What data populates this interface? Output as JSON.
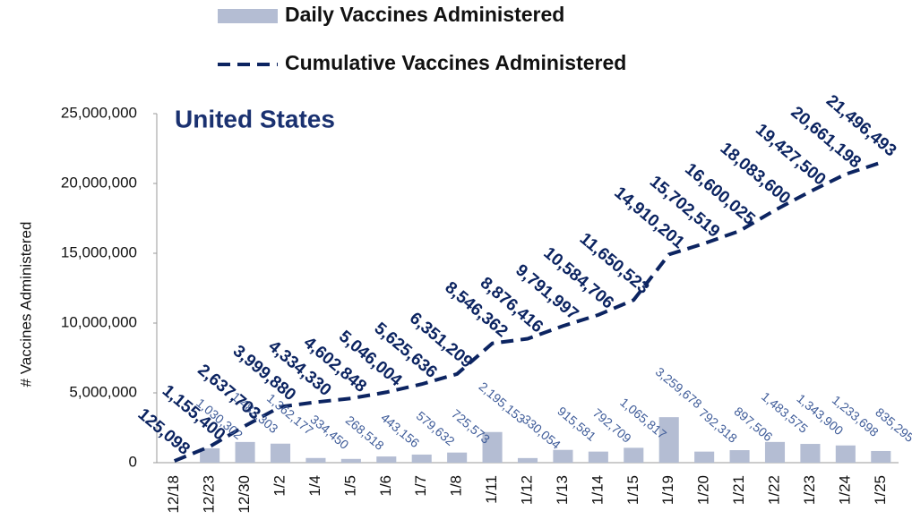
{
  "chart_data": {
    "type": "bar-line",
    "title": "United States",
    "y_label": "# Vaccines Administered",
    "categories": [
      "12/18",
      "12/23",
      "12/30",
      "1/2",
      "1/4",
      "1/5",
      "1/6",
      "1/7",
      "1/8",
      "1/11",
      "1/12",
      "1/13",
      "1/14",
      "1/15",
      "1/19",
      "1/20",
      "1/21",
      "1/22",
      "1/23",
      "1/24",
      "1/25"
    ],
    "series": [
      {
        "name": "Daily Vaccines Administered",
        "kind": "bar",
        "color": "#b4bdd3",
        "values": [
          null,
          1030302,
          1482303,
          1362177,
          334450,
          268518,
          443156,
          579632,
          725573,
          2195153,
          330054,
          915581,
          792709,
          1065817,
          3259678,
          792318,
          897506,
          1483575,
          1343900,
          1233698,
          835295
        ],
        "value_labels": [
          null,
          "1,030,302",
          "1,482,303",
          "1,362,177",
          "334,450",
          "268,518",
          "443,156",
          "579,632",
          "725,573",
          "2,195,153",
          "330,054",
          "915,581",
          "792,709",
          "1,065,817",
          "3,259,678",
          "792,318",
          "897,506",
          "1,483,575",
          "1,343,900",
          "1,233,698",
          "835,295"
        ]
      },
      {
        "name": "Cumulative Vaccines Administered",
        "kind": "line",
        "color": "#0c2461",
        "values": [
          125098,
          1155400,
          2637703,
          3999880,
          4334330,
          4602848,
          5046004,
          5625636,
          6351209,
          8546362,
          8876416,
          9791997,
          10584706,
          11650523,
          14910201,
          15702519,
          16600025,
          18083600,
          19427500,
          20661198,
          21496493
        ],
        "value_labels": [
          "125,098",
          "1,155,400",
          "2,637,703",
          "3,999,880",
          "4,334,330",
          "4,602,848",
          "5,046,004",
          "5,625,636",
          "6,351,209",
          "8,546,362",
          "8,876,416",
          "9,791,997",
          "10,584,706",
          "11,650,523",
          "14,910,201",
          "15,702,519",
          "16,600,025",
          "18,083,600",
          "19,427,500",
          "20,661,198",
          "21,496,493"
        ]
      }
    ],
    "ylim": [
      0,
      25000000
    ],
    "yticks": [
      0,
      {
        "value": 5000000,
        "label": "5,000,000"
      },
      {
        "value": 10000000,
        "label": "10,000,000"
      },
      {
        "value": 15000000,
        "label": "15,000,000"
      },
      {
        "value": 20000000,
        "label": "20,000,000"
      },
      {
        "value": 25000000,
        "label": "25,000,000"
      }
    ]
  }
}
